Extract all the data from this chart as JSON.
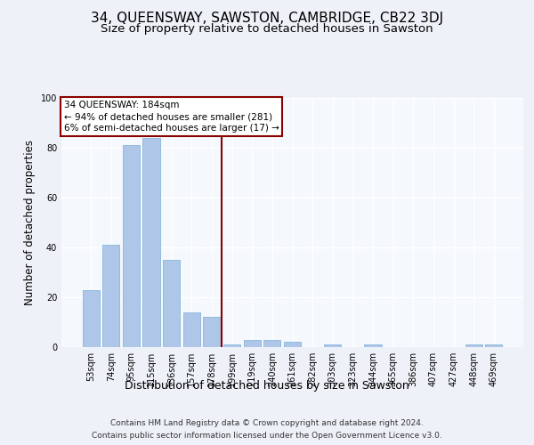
{
  "title": "34, QUEENSWAY, SAWSTON, CAMBRIDGE, CB22 3DJ",
  "subtitle": "Size of property relative to detached houses in Sawston",
  "xlabel": "Distribution of detached houses by size in Sawston",
  "ylabel": "Number of detached properties",
  "bar_labels": [
    "53sqm",
    "74sqm",
    "95sqm",
    "115sqm",
    "136sqm",
    "157sqm",
    "178sqm",
    "199sqm",
    "219sqm",
    "240sqm",
    "261sqm",
    "282sqm",
    "303sqm",
    "323sqm",
    "344sqm",
    "365sqm",
    "386sqm",
    "407sqm",
    "427sqm",
    "448sqm",
    "469sqm"
  ],
  "bar_values": [
    23,
    41,
    81,
    84,
    35,
    14,
    12,
    1,
    3,
    3,
    2,
    0,
    1,
    0,
    1,
    0,
    0,
    0,
    0,
    1,
    1
  ],
  "bar_color": "#aec6e8",
  "bar_edge_color": "#7aaed6",
  "vline_x": 6.5,
  "vline_color": "#8b0000",
  "annotation_title": "34 QUEENSWAY: 184sqm",
  "annotation_line1": "← 94% of detached houses are smaller (281)",
  "annotation_line2": "6% of semi-detached houses are larger (17) →",
  "annotation_box_color": "#8b0000",
  "annotation_bg_color": "#ffffff",
  "ylim": [
    0,
    100
  ],
  "yticks": [
    0,
    20,
    40,
    60,
    80,
    100
  ],
  "footer_line1": "Contains HM Land Registry data © Crown copyright and database right 2024.",
  "footer_line2": "Contains public sector information licensed under the Open Government Licence v3.0.",
  "bg_color": "#eef2f8",
  "plot_bg_color": "#f5f8fd",
  "grid_color": "#ffffff",
  "title_fontsize": 11,
  "subtitle_fontsize": 9.5,
  "xlabel_fontsize": 9,
  "ylabel_fontsize": 8.5,
  "tick_fontsize": 7,
  "footer_fontsize": 6.5,
  "ann_fontsize": 7.5
}
